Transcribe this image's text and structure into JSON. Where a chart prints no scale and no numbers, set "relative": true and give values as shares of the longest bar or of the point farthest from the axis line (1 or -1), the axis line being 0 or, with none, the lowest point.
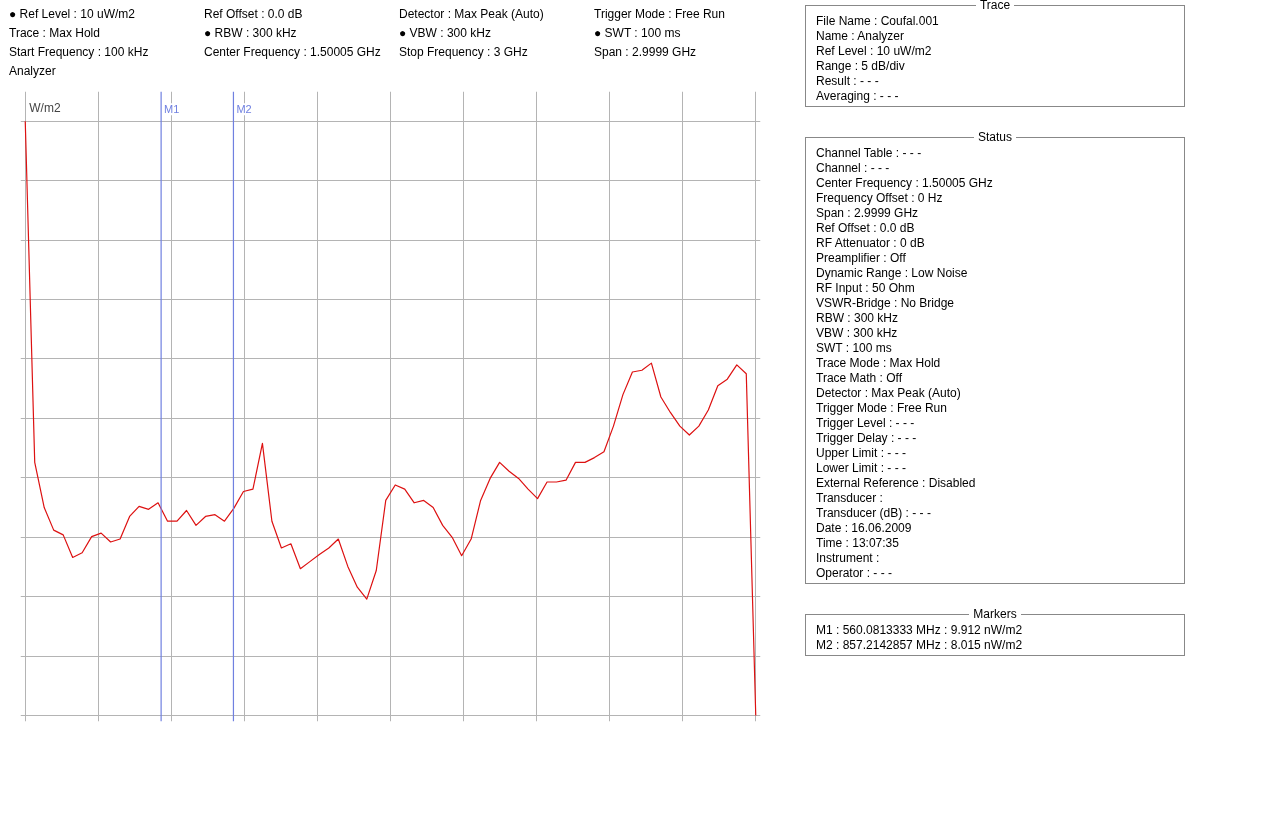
{
  "chart_data": [
    {
      "type": "line",
      "relative": true,
      "ylabel": "W/m2",
      "grid": true,
      "line_style": "solid",
      "color": "#dd1111",
      "categories": [
        null,
        null,
        null,
        null,
        null,
        null,
        null,
        null,
        null,
        null,
        null,
        null,
        null,
        null,
        null,
        null,
        null,
        null,
        null,
        null,
        null,
        null,
        null,
        null,
        null,
        null,
        null,
        null,
        null,
        null,
        null,
        null,
        null,
        null,
        null,
        null,
        null,
        null,
        null,
        null,
        null,
        null,
        null,
        null,
        null,
        null,
        null,
        null,
        null,
        null,
        null,
        null,
        null,
        null,
        null,
        null,
        null,
        null,
        null,
        null,
        null,
        null,
        null,
        null,
        null,
        null,
        null,
        null,
        null,
        null,
        null,
        null,
        null,
        null,
        null,
        null,
        null,
        null
      ],
      "values": [
        1,
        0.426,
        0.35,
        0.312,
        0.304,
        0.266,
        0.274,
        0.301,
        0.307,
        0.292,
        0.297,
        0.335,
        0.352,
        0.347,
        0.358,
        0.327,
        0.327,
        0.345,
        0.32,
        0.335,
        0.338,
        0.327,
        0.349,
        0.377,
        0.381,
        0.458,
        0.327,
        0.282,
        0.289,
        0.247,
        0.259,
        0.271,
        0.282,
        0.297,
        0.251,
        0.216,
        0.196,
        0.244,
        0.362,
        0.388,
        0.381,
        0.358,
        0.362,
        0.35,
        0.32,
        0.3,
        0.269,
        0.297,
        0.362,
        0.399,
        0.426,
        0.411,
        0.399,
        0.381,
        0.365,
        0.393,
        0.393,
        0.396,
        0.426,
        0.426,
        0.434,
        0.444,
        0.487,
        0.54,
        0.578,
        0.581,
        0.593,
        0.536,
        0.51,
        0.487,
        0.472,
        0.487,
        0.514,
        0.555,
        0.566,
        0.59,
        0.575,
        0
      ],
      "annotations": [
        {
          "text": "M1"
        },
        {
          "text": "M2"
        },
        "● Ref Level : 10 uW/m2",
        "Ref Offset : 0.0 dB",
        "Detector : Max Peak (Auto)",
        "Trigger Mode : Free Run",
        "Trace : Max Hold",
        "● RBW : 300 kHz",
        "● VBW : 300 kHz",
        "● SWT : 100 ms",
        "Start Frequency : 100 kHz",
        "Center Frequency : 1.50005 GHz",
        "Stop Frequency : 3 GHz",
        "Span : 2.9999 GHz",
        "Analyzer"
      ]
    },
    {
      "type": "other",
      "title": "Trace",
      "annotations": [
        "File Name : Coufal.001",
        "Name : Analyzer",
        "Ref Level : 10 uW/m2",
        "Range : 5 dB/div",
        "Result : - - -",
        "Averaging : - - -"
      ]
    },
    {
      "type": "other",
      "title": "Status",
      "annotations": [
        "Channel Table : - - -",
        "Channel : - - -",
        "Center Frequency : 1.50005 GHz",
        "Frequency Offset : 0 Hz",
        "Span : 2.9999 GHz",
        "Ref Offset : 0.0 dB",
        "RF Attenuator : 0 dB",
        "Preamplifier : Off",
        "Dynamic Range : Low Noise",
        "RF Input : 50 Ohm",
        "VSWR-Bridge : No Bridge",
        "RBW : 300 kHz",
        "VBW : 300 kHz",
        "SWT : 100 ms",
        "Trace Mode : Max Hold",
        "Trace Math : Off",
        "Detector : Max Peak (Auto)",
        "Trigger Mode : Free Run",
        "Trigger Level : - - -",
        "Trigger Delay : - - -",
        "Upper Limit : - - -",
        "Lower Limit : - - -",
        "External Reference : Disabled",
        "Transducer :",
        "Transducer (dB) : - - -",
        "Date : 16.06.2009",
        "Time : 13:07:35",
        "Instrument :",
        "Operator : - - -"
      ]
    },
    {
      "type": "other",
      "title": "Markers",
      "annotations": [
        "M1 : 560.0813333 MHz : 9.912 nW/m2",
        "M2 : 857.2142857 MHz : 8.015 nW/m2"
      ]
    }
  ]
}
